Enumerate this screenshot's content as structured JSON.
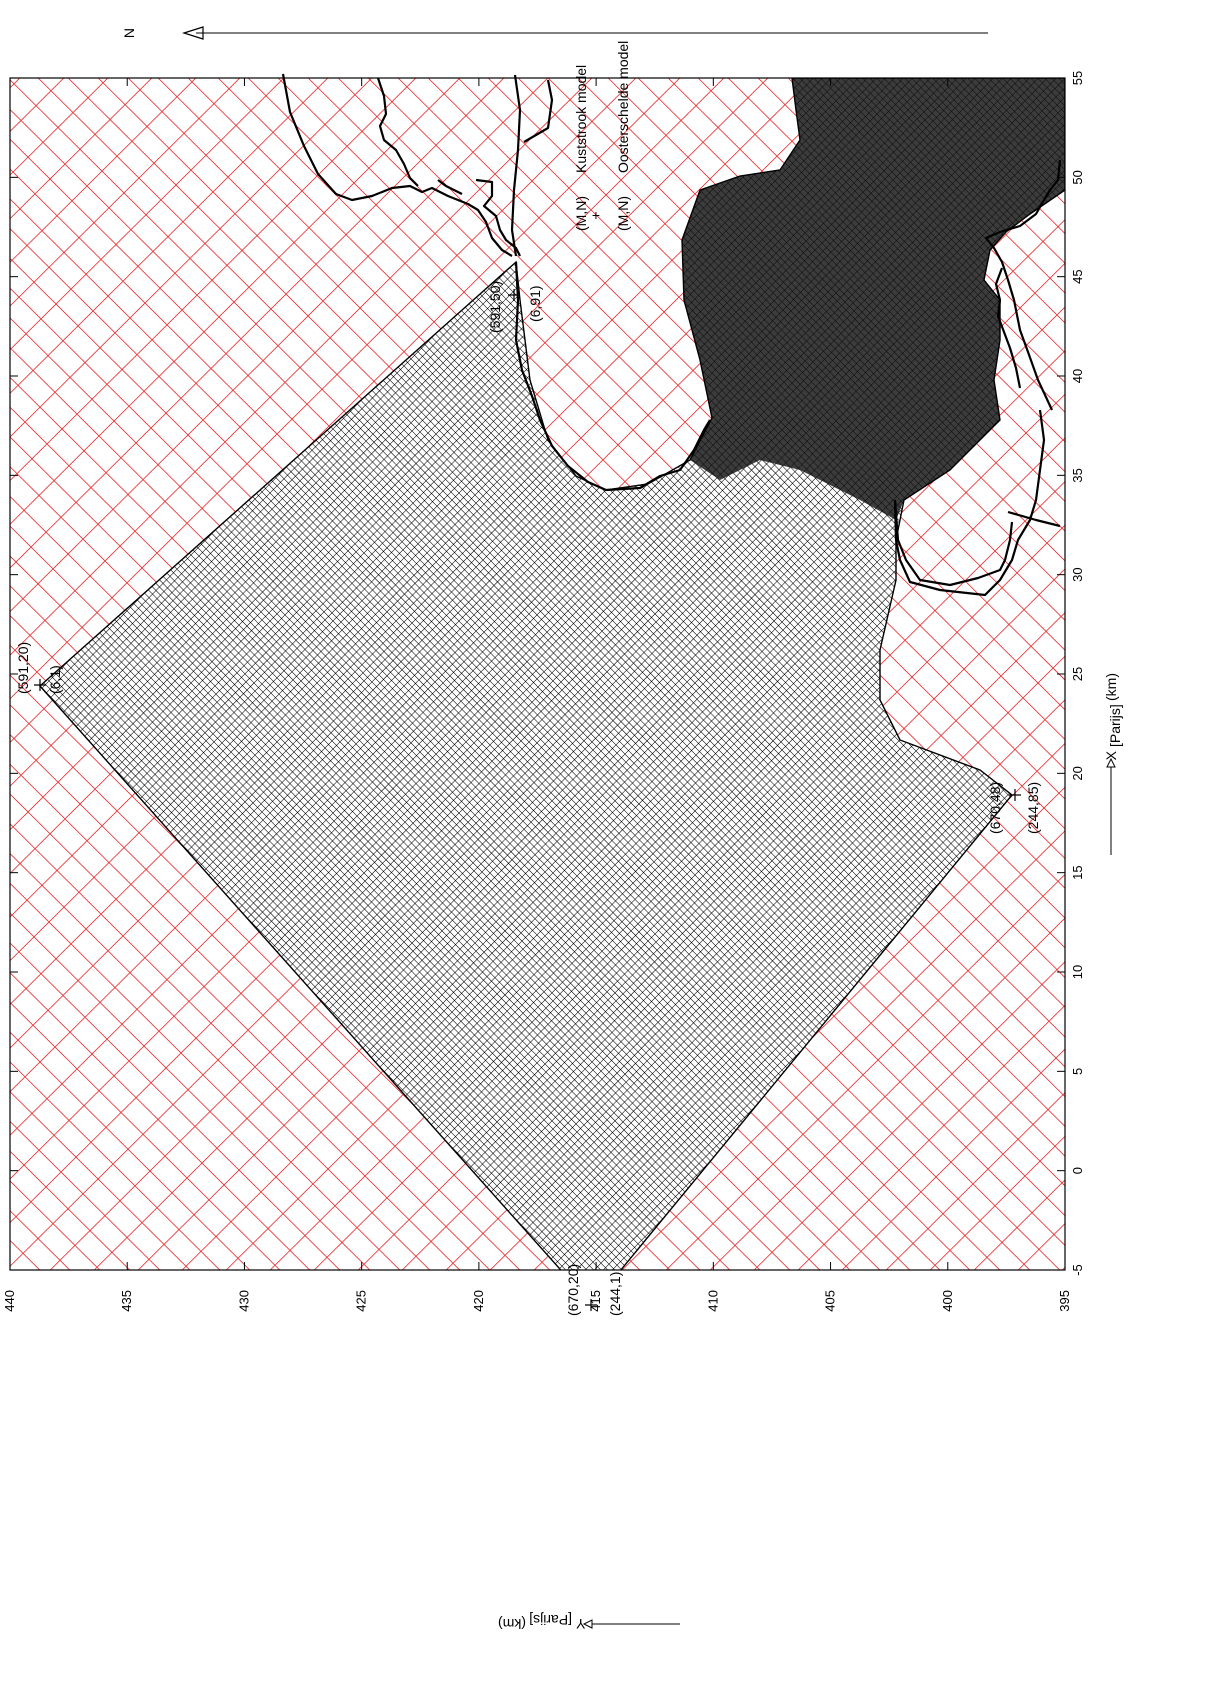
{
  "figure": {
    "x_axis": {
      "label_main": "X",
      "label_sub": "[Parijs]",
      "label_unit": "(km)",
      "ticks": [
        "-5",
        "0",
        "5",
        "10",
        "15",
        "20",
        "25",
        "30",
        "35",
        "40",
        "45",
        "50",
        "55"
      ]
    },
    "y_axis": {
      "label_main": "Y",
      "label_sub": "[Parijs]",
      "label_unit": "(km)",
      "ticks": [
        "395",
        "400",
        "405",
        "410",
        "415",
        "420",
        "425",
        "430",
        "435",
        "440"
      ]
    },
    "north_label": "N",
    "legend": {
      "items": [
        {
          "symbol": "(M,N)",
          "text": "Kuststrook model"
        },
        {
          "symbol": "(M,N)",
          "text": "Oosterschelde model"
        }
      ],
      "plus": "+"
    },
    "corner_labels": [
      {
        "id": "top-corner-kust",
        "text": "(591,20)"
      },
      {
        "id": "top-corner-oost",
        "text": "(6,1)"
      },
      {
        "id": "right-corner-kust",
        "text": "(591,50)"
      },
      {
        "id": "right-corner-oost",
        "text": "(6,91)"
      },
      {
        "id": "bottom-corner-kust",
        "text": "(670,20)"
      },
      {
        "id": "bottom-corner-oost",
        "text": "(244,1)"
      },
      {
        "id": "left-corner-kust",
        "text": "(670,48)"
      },
      {
        "id": "left-corner-oost",
        "text": "(244,85)"
      }
    ],
    "colors": {
      "kuststrook_grid": "#e8282b",
      "oosterschelde_grid": "#000000",
      "axes": "#000000",
      "background": "#ffffff"
    }
  }
}
